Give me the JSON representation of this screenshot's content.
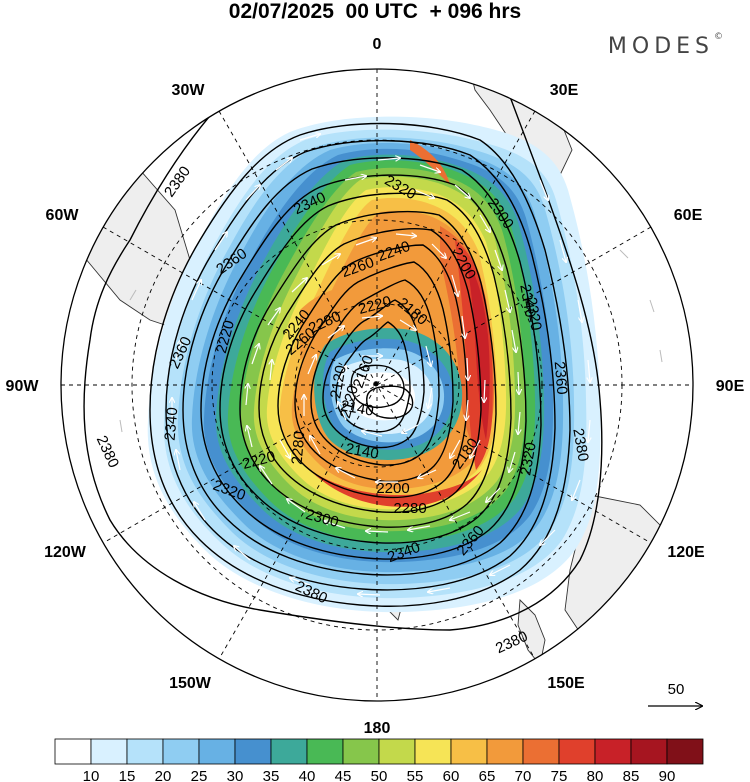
{
  "header": {
    "title": "02/07/2025  00 UTC  + 096 hrs",
    "brand": "MODES",
    "brand_mark": "©"
  },
  "map": {
    "projection": "south-polar-stereographic",
    "longitude_labels": [
      "0",
      "30E",
      "60E",
      "90E",
      "120E",
      "150E",
      "180",
      "150W",
      "120W",
      "90W",
      "60W",
      "30W"
    ],
    "contour_labels": [
      "2380",
      "2360",
      "2340",
      "2320",
      "2300",
      "2280",
      "2260",
      "2240",
      "2220",
      "2200",
      "2180",
      "2160",
      "2140",
      "2120",
      "2380",
      "2360",
      "2340",
      "2340",
      "2320",
      "2320",
      "2300",
      "2280",
      "2280",
      "2260",
      "2240",
      "2220",
      "2220",
      "2200",
      "2180",
      "2140",
      "2120",
      "2380",
      "2380",
      "2360",
      "2360",
      "2340",
      "2320",
      "2380"
    ],
    "vector_reference": {
      "value": "50"
    }
  },
  "colorbar": {
    "ticks": [
      "10",
      "15",
      "20",
      "25",
      "30",
      "35",
      "40",
      "45",
      "50",
      "55",
      "60",
      "65",
      "70",
      "75",
      "80",
      "85",
      "90"
    ],
    "colors": [
      "#ffffff",
      "#d9f1ff",
      "#b5e2fa",
      "#8fcdf2",
      "#67b1e4",
      "#4690cf",
      "#3da99a",
      "#49b955",
      "#86c64b",
      "#c3d94b",
      "#f6e456",
      "#f7bf46",
      "#f29a3b",
      "#eb6f33",
      "#e0402c",
      "#c82128",
      "#a61520",
      "#801018"
    ]
  }
}
